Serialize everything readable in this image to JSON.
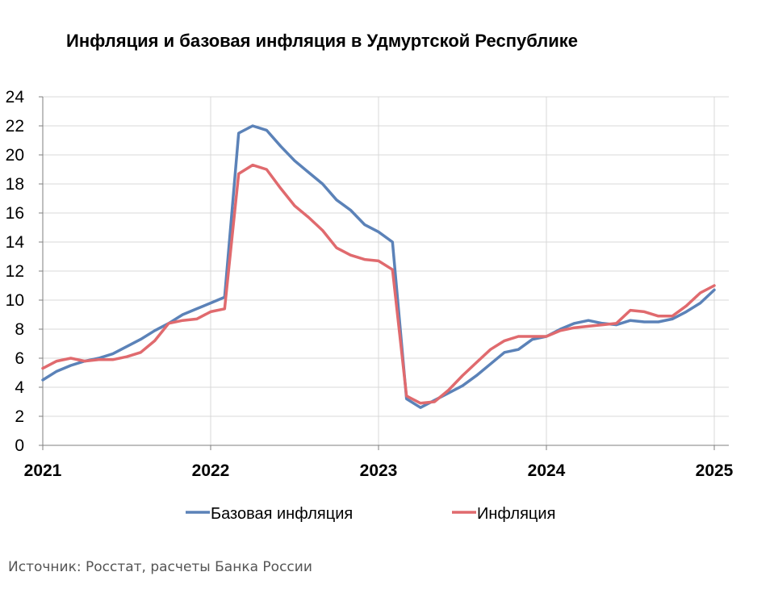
{
  "title": "Инфляция и базовая инфляция в Удмуртской Республике",
  "source": "Источник: Росстат, расчеты Банка России",
  "chart_data": {
    "type": "line",
    "title": "Инфляция и базовая инфляция в Удмуртской Республике",
    "xlabel": "",
    "ylabel": "",
    "ylim": [
      0,
      24
    ],
    "y_ticks": [
      0,
      2,
      4,
      6,
      8,
      10,
      12,
      14,
      16,
      18,
      20,
      22,
      24
    ],
    "x_tick_labels": [
      "2021",
      "2022",
      "2023",
      "2024",
      "2025"
    ],
    "x_range": [
      "2021-01",
      "2025-02"
    ],
    "grid": true,
    "legend_position": "bottom",
    "x": [
      "2021-01",
      "2021-02",
      "2021-03",
      "2021-04",
      "2021-05",
      "2021-06",
      "2021-07",
      "2021-08",
      "2021-09",
      "2021-10",
      "2021-11",
      "2021-12",
      "2022-01",
      "2022-02",
      "2022-03",
      "2022-04",
      "2022-05",
      "2022-06",
      "2022-07",
      "2022-08",
      "2022-09",
      "2022-10",
      "2022-11",
      "2022-12",
      "2023-01",
      "2023-02",
      "2023-03",
      "2023-04",
      "2023-05",
      "2023-06",
      "2023-07",
      "2023-08",
      "2023-09",
      "2023-10",
      "2023-11",
      "2023-12",
      "2024-01",
      "2024-02",
      "2024-03",
      "2024-04",
      "2024-05",
      "2024-06",
      "2024-07",
      "2024-08",
      "2024-09",
      "2024-10",
      "2024-11",
      "2024-12",
      "2025-01"
    ],
    "series": [
      {
        "name": "Базовая инфляция",
        "color": "#5B82B8",
        "values": [
          4.5,
          5.1,
          5.5,
          5.8,
          6.0,
          6.3,
          6.8,
          7.3,
          7.9,
          8.4,
          9.0,
          9.4,
          9.8,
          10.2,
          21.5,
          22.0,
          21.7,
          20.6,
          19.6,
          18.8,
          18.0,
          16.9,
          16.2,
          15.2,
          14.7,
          14.0,
          3.2,
          2.6,
          3.1,
          3.6,
          4.1,
          4.8,
          5.6,
          6.4,
          6.6,
          7.3,
          7.5,
          8.0,
          8.4,
          8.6,
          8.4,
          8.3,
          8.6,
          8.5,
          8.5,
          8.7,
          9.2,
          9.8,
          10.7
        ]
      },
      {
        "name": "Инфляция",
        "color": "#E06A6E",
        "values": [
          5.3,
          5.8,
          6.0,
          5.8,
          5.9,
          5.9,
          6.1,
          6.4,
          7.2,
          8.4,
          8.6,
          8.7,
          9.2,
          9.4,
          18.7,
          19.3,
          19.0,
          17.7,
          16.5,
          15.7,
          14.8,
          13.6,
          13.1,
          12.8,
          12.7,
          12.1,
          3.4,
          2.9,
          3.0,
          3.8,
          4.8,
          5.7,
          6.6,
          7.2,
          7.5,
          7.5,
          7.5,
          7.9,
          8.1,
          8.2,
          8.3,
          8.4,
          9.3,
          9.2,
          8.9,
          8.9,
          9.6,
          10.5,
          11.0
        ]
      }
    ]
  }
}
